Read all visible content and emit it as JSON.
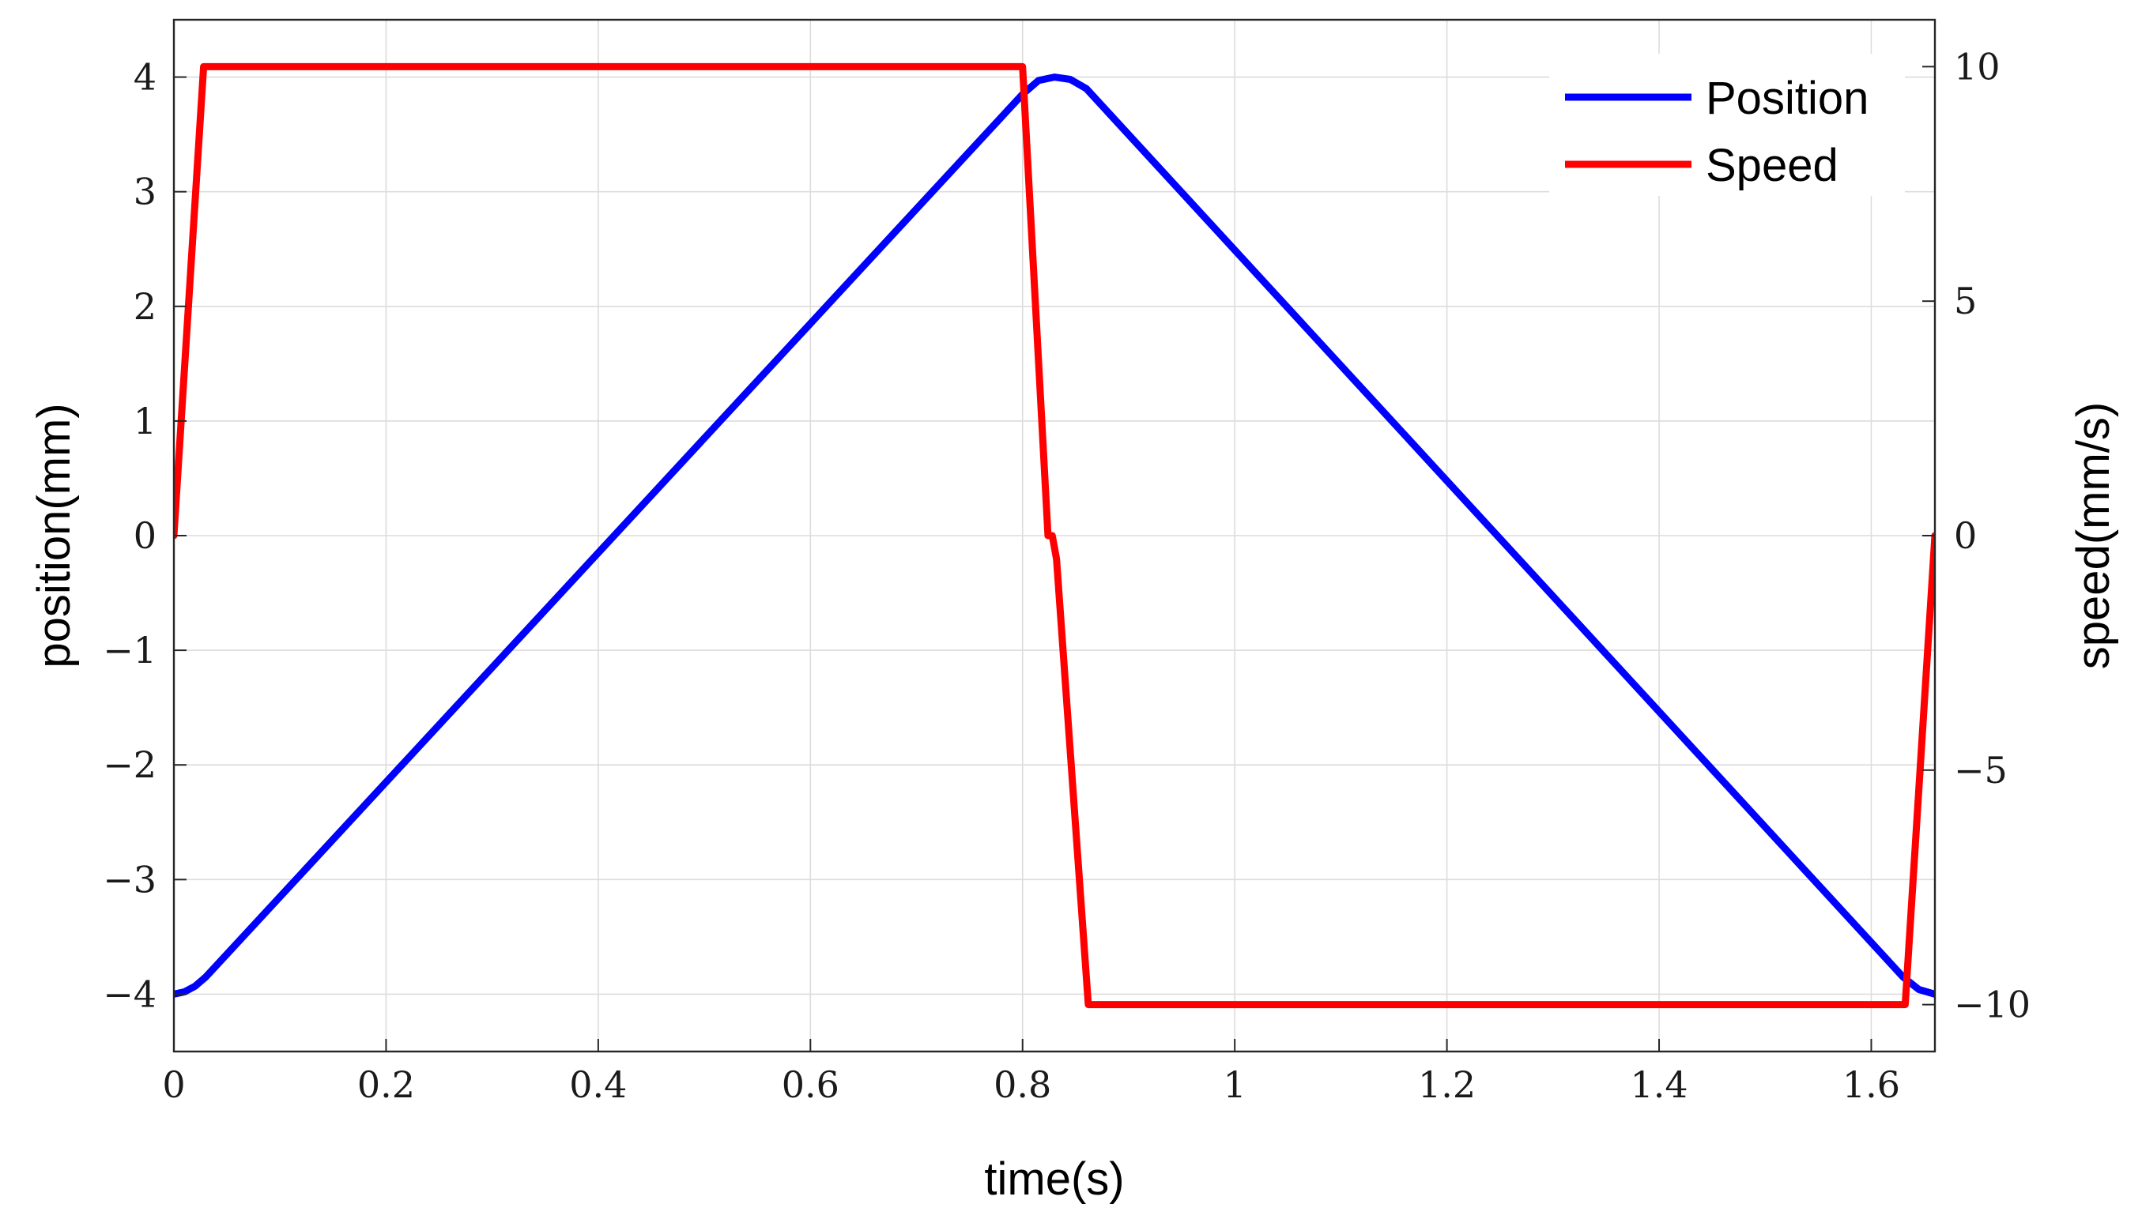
{
  "chart_data": {
    "type": "line",
    "title": "",
    "xlabel": "time(s)",
    "ylabel_left": "position(mm)",
    "ylabel_right": "speed(mm/s)",
    "xlim": [
      0,
      1.66
    ],
    "ylim_left": [
      -4.5,
      4.5
    ],
    "ylim_right": [
      -11,
      11
    ],
    "x_ticks": [
      0,
      0.2,
      0.4,
      0.6,
      0.8,
      1,
      1.2,
      1.4,
      1.6
    ],
    "x_tick_labels": [
      "0",
      "0.2",
      "0.4",
      "0.6",
      "0.8",
      "1",
      "1.2",
      "1.4",
      "1.6"
    ],
    "y_left_ticks": [
      -4,
      -3,
      -2,
      -1,
      0,
      1,
      2,
      3,
      4
    ],
    "y_left_tick_labels": [
      "−4",
      "−3",
      "−2",
      "−1",
      "0",
      "1",
      "2",
      "3",
      "4"
    ],
    "y_right_ticks": [
      -10,
      -5,
      0,
      5,
      10
    ],
    "y_right_tick_labels": [
      "−10",
      "−5",
      "0",
      "5",
      "10"
    ],
    "grid": true,
    "legend_position": "top-right",
    "series": [
      {
        "name": "Position",
        "axis": "left",
        "color": "#0000ff",
        "points": [
          [
            0,
            -4
          ],
          [
            0.01,
            -3.98
          ],
          [
            0.02,
            -3.93
          ],
          [
            0.03,
            -3.85
          ],
          [
            0.8,
            3.85
          ],
          [
            0.815,
            3.97
          ],
          [
            0.83,
            4
          ],
          [
            0.845,
            3.98
          ],
          [
            0.86,
            3.9
          ],
          [
            1.63,
            -3.85
          ],
          [
            1.645,
            -3.96
          ],
          [
            1.66,
            -4
          ]
        ]
      },
      {
        "name": "Speed",
        "axis": "right",
        "color": "#ff0000",
        "points": [
          [
            0,
            0
          ],
          [
            0.028,
            10
          ],
          [
            0.8,
            10
          ],
          [
            0.824,
            0
          ],
          [
            0.828,
            0
          ],
          [
            0.832,
            -0.5
          ],
          [
            0.862,
            -10
          ],
          [
            1.632,
            -10
          ],
          [
            1.66,
            0
          ]
        ]
      }
    ]
  }
}
